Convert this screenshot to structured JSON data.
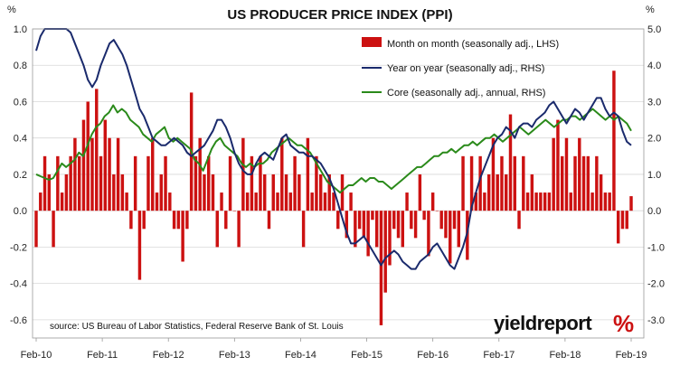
{
  "chart_data": {
    "type": "bar+line",
    "title": "US PRODUCER PRICE INDEX (PPI)",
    "left_axis_unit": "%",
    "right_axis_unit": "%",
    "left_ylim": [
      -0.7,
      1.0
    ],
    "left_ticks": [
      "1.0",
      "0.8",
      "0.6",
      "0.4",
      "0.2",
      "0.0",
      "-0.2",
      "-0.4",
      "-0.6"
    ],
    "left_tick_values": [
      1.0,
      0.8,
      0.6,
      0.4,
      0.2,
      0.0,
      -0.2,
      -0.4,
      -0.6
    ],
    "right_ylim": [
      -3.5,
      5.0
    ],
    "right_ticks": [
      "5.0",
      "4.0",
      "3.0",
      "2.0",
      "1.0",
      "0.0",
      "-1.0",
      "-2.0",
      "-3.0"
    ],
    "right_tick_values": [
      5.0,
      4.0,
      3.0,
      2.0,
      1.0,
      0.0,
      -1.0,
      -2.0,
      -3.0
    ],
    "x_tick_labels": [
      "Feb-10",
      "Feb-11",
      "Feb-12",
      "Feb-13",
      "Feb-14",
      "Feb-15",
      "Feb-16",
      "Feb-17",
      "Feb-18",
      "Feb-19"
    ],
    "grid": true,
    "legend_position": "top-right",
    "source_note": "source: US Bureau of Labor Statistics, Federal Reserve Bank of St. Louis",
    "brand_text": "yieldreport",
    "brand_symbol": "%",
    "colors": {
      "bars": "#cc1111",
      "yoy": "#1a2a6c",
      "core": "#2a8a1a",
      "grid": "#d8d8d8",
      "brand_accent": "#cc1111"
    },
    "series": [
      {
        "name": "Month on month (seasonally adj., LHS)",
        "kind": "bar",
        "axis": "left",
        "values": [
          -0.2,
          0.1,
          0.3,
          0.2,
          -0.2,
          0.3,
          0.1,
          0.2,
          0.3,
          0.4,
          0.3,
          0.5,
          0.6,
          0.4,
          0.67,
          0.3,
          0.5,
          0.4,
          0.2,
          0.4,
          0.2,
          0.1,
          -0.1,
          0.3,
          -0.38,
          -0.1,
          0.3,
          0.4,
          0.1,
          0.2,
          0.3,
          0.1,
          -0.1,
          -0.1,
          -0.28,
          -0.1,
          0.65,
          0.3,
          0.4,
          0.2,
          0.3,
          0.2,
          -0.2,
          0.1,
          -0.1,
          0.3,
          0.0,
          -0.2,
          0.4,
          0.1,
          0.3,
          0.1,
          0.3,
          0.2,
          -0.1,
          0.2,
          0.1,
          0.4,
          0.2,
          0.1,
          0.3,
          0.2,
          -0.2,
          0.4,
          0.1,
          0.3,
          0.2,
          0.1,
          0.2,
          0.1,
          -0.1,
          0.2,
          -0.15,
          0.1,
          -0.2,
          -0.1,
          -0.15,
          -0.25,
          -0.05,
          -0.2,
          -0.63,
          -0.45,
          -0.3,
          -0.1,
          -0.15,
          -0.2,
          0.1,
          -0.1,
          -0.15,
          0.2,
          -0.05,
          -0.25,
          0.1,
          0.0,
          -0.1,
          -0.15,
          -0.29,
          -0.1,
          -0.2,
          0.3,
          -0.27,
          0.3,
          0.1,
          0.3,
          0.1,
          0.2,
          0.4,
          0.2,
          0.3,
          0.2,
          0.53,
          0.3,
          -0.1,
          0.3,
          0.1,
          0.2,
          0.1,
          0.1,
          0.1,
          0.1,
          0.4,
          0.5,
          0.3,
          0.4,
          0.1,
          0.3,
          0.4,
          0.3,
          0.3,
          0.1,
          0.3,
          0.2,
          0.1,
          0.1,
          0.77,
          -0.18,
          -0.1,
          -0.1,
          0.08
        ]
      },
      {
        "name": "Year on year (seasonally adj., RHS)",
        "kind": "line",
        "axis": "right",
        "values": [
          4.4,
          4.8,
          5.4,
          5.9,
          6.1,
          5.8,
          5.6,
          5.2,
          4.9,
          4.6,
          4.3,
          4.0,
          3.6,
          3.4,
          3.6,
          4.0,
          4.3,
          4.6,
          4.7,
          4.5,
          4.3,
          4.0,
          3.6,
          3.2,
          2.8,
          2.6,
          2.3,
          2.0,
          1.9,
          1.8,
          1.8,
          1.9,
          2.0,
          1.9,
          1.8,
          1.6,
          1.5,
          1.6,
          1.7,
          1.8,
          2.0,
          2.2,
          2.5,
          2.5,
          2.3,
          2.0,
          1.6,
          1.3,
          1.1,
          1.0,
          1.0,
          1.3,
          1.5,
          1.6,
          1.5,
          1.4,
          1.7,
          2.0,
          2.1,
          1.8,
          1.7,
          1.6,
          1.6,
          1.5,
          1.5,
          1.4,
          1.3,
          1.1,
          0.9,
          0.6,
          0.2,
          -0.2,
          -0.6,
          -0.9,
          -0.9,
          -0.8,
          -0.7,
          -0.9,
          -1.1,
          -1.3,
          -1.5,
          -1.3,
          -1.2,
          -1.1,
          -1.2,
          -1.4,
          -1.5,
          -1.6,
          -1.6,
          -1.4,
          -1.3,
          -1.2,
          -1.0,
          -0.9,
          -1.1,
          -1.3,
          -1.5,
          -1.6,
          -1.3,
          -1.0,
          -0.6,
          0.1,
          0.5,
          0.9,
          1.2,
          1.5,
          1.8,
          2.0,
          2.1,
          2.3,
          2.2,
          2.0,
          2.3,
          2.4,
          2.4,
          2.3,
          2.5,
          2.6,
          2.7,
          2.9,
          3.0,
          2.8,
          2.6,
          2.4,
          2.6,
          2.8,
          2.7,
          2.5,
          2.7,
          2.9,
          3.1,
          3.1,
          2.8,
          2.6,
          2.7,
          2.6,
          2.2,
          1.9,
          1.8
        ]
      },
      {
        "name": "Core (seasonally adj., annual, RHS)",
        "kind": "line",
        "axis": "right",
        "values": [
          1.0,
          0.95,
          0.9,
          0.85,
          0.9,
          1.1,
          1.3,
          1.2,
          1.3,
          1.4,
          1.6,
          1.5,
          1.8,
          2.1,
          2.3,
          2.4,
          2.6,
          2.7,
          2.9,
          2.7,
          2.8,
          2.7,
          2.5,
          2.4,
          2.3,
          2.1,
          2.0,
          1.9,
          2.1,
          2.2,
          2.3,
          2.0,
          1.9,
          2.0,
          1.9,
          1.8,
          1.7,
          1.4,
          1.3,
          1.1,
          1.4,
          1.7,
          1.9,
          2.0,
          1.8,
          1.7,
          1.6,
          1.5,
          1.3,
          1.2,
          1.3,
          1.2,
          1.3,
          1.3,
          1.4,
          1.6,
          1.7,
          1.8,
          1.9,
          2.0,
          1.9,
          1.8,
          1.8,
          1.7,
          1.6,
          1.4,
          1.2,
          1.0,
          0.8,
          0.7,
          0.6,
          0.5,
          0.6,
          0.7,
          0.7,
          0.8,
          0.9,
          0.8,
          0.9,
          0.9,
          0.8,
          0.8,
          0.7,
          0.6,
          0.7,
          0.8,
          0.9,
          1.0,
          1.1,
          1.2,
          1.2,
          1.3,
          1.4,
          1.5,
          1.5,
          1.6,
          1.6,
          1.7,
          1.6,
          1.7,
          1.8,
          1.8,
          1.9,
          1.8,
          1.9,
          2.0,
          2.0,
          2.1,
          2.0,
          1.9,
          2.0,
          2.1,
          2.2,
          2.3,
          2.2,
          2.1,
          2.2,
          2.3,
          2.4,
          2.5,
          2.4,
          2.3,
          2.4,
          2.5,
          2.5,
          2.6,
          2.6,
          2.5,
          2.6,
          2.7,
          2.8,
          2.7,
          2.6,
          2.5,
          2.6,
          2.5,
          2.6,
          2.5,
          2.4,
          2.2
        ]
      }
    ]
  }
}
